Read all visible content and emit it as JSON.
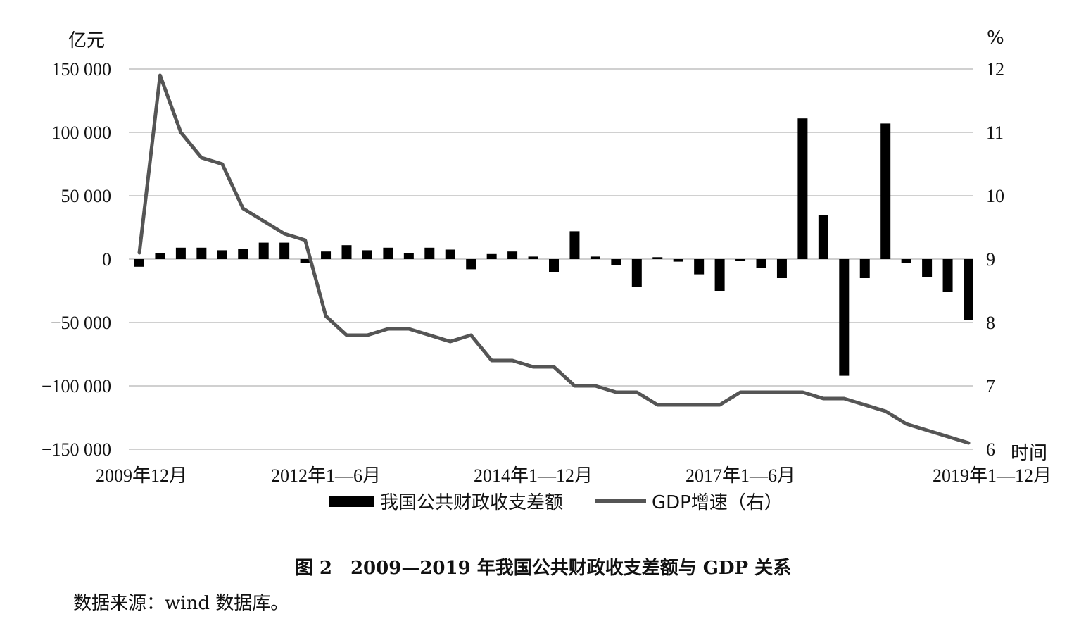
{
  "chart_data": {
    "type": "bar+line",
    "title": "",
    "left_axis": {
      "unit": "亿元",
      "ylim": [
        -150000,
        150000
      ],
      "ticks": [
        150000,
        100000,
        50000,
        0,
        -50000,
        -100000,
        -150000
      ],
      "tick_labels": [
        "150 000",
        "100 000",
        "50 000",
        "0",
        "−50 000",
        "−100 000",
        "−150 000"
      ]
    },
    "right_axis": {
      "unit": "%",
      "ylim": [
        6,
        12
      ],
      "ticks": [
        12,
        11,
        10,
        9,
        8,
        7,
        6
      ],
      "tick_labels": [
        "12",
        "11",
        "10",
        "9",
        "8",
        "7",
        "6"
      ]
    },
    "x_axis": {
      "label": "时间",
      "tick_labels": [
        "2009年12月",
        "2012年1—6月",
        "2014年1—12月",
        "2017年1—6月",
        "2019年1—12月"
      ],
      "tick_indices": [
        0,
        9,
        19,
        29,
        40
      ]
    },
    "series": [
      {
        "name": "我国公共财政收支差额",
        "kind": "bar",
        "axis": "left",
        "color": "#000000",
        "values": [
          -6000,
          5000,
          9000,
          9000,
          7000,
          8000,
          13000,
          13000,
          -3000,
          6000,
          11000,
          7000,
          9000,
          5000,
          9000,
          7500,
          -8000,
          4000,
          6000,
          2000,
          -10000,
          22000,
          2000,
          -5000,
          -22000,
          1500,
          -2000,
          -12000,
          -25000,
          -1500,
          -7000,
          -15000,
          111000,
          35000,
          -92000,
          -15000,
          107000,
          -3000,
          -14000,
          -26000,
          -48000
        ]
      },
      {
        "name": "GDP增速（右）",
        "kind": "line",
        "axis": "right",
        "color": "#555555",
        "values": [
          9.1,
          11.9,
          11.0,
          10.6,
          10.5,
          9.8,
          9.6,
          9.4,
          9.3,
          8.1,
          7.8,
          7.8,
          7.9,
          7.9,
          7.8,
          7.7,
          7.8,
          7.4,
          7.4,
          7.3,
          7.3,
          7.0,
          7.0,
          6.9,
          6.9,
          6.7,
          6.7,
          6.7,
          6.7,
          6.9,
          6.9,
          6.9,
          6.9,
          6.8,
          6.8,
          6.7,
          6.6,
          6.4,
          6.3,
          6.2,
          6.1
        ]
      }
    ],
    "legend": {
      "placement": "bottom",
      "entries": [
        "我国公共财政收支差额",
        "GDP增速（右）"
      ]
    },
    "grid": "horizontal"
  },
  "caption": "图 2　2009—2019 年我国公共财政收支差额与 GDP 关系",
  "source": "数据来源：wind 数据库。"
}
